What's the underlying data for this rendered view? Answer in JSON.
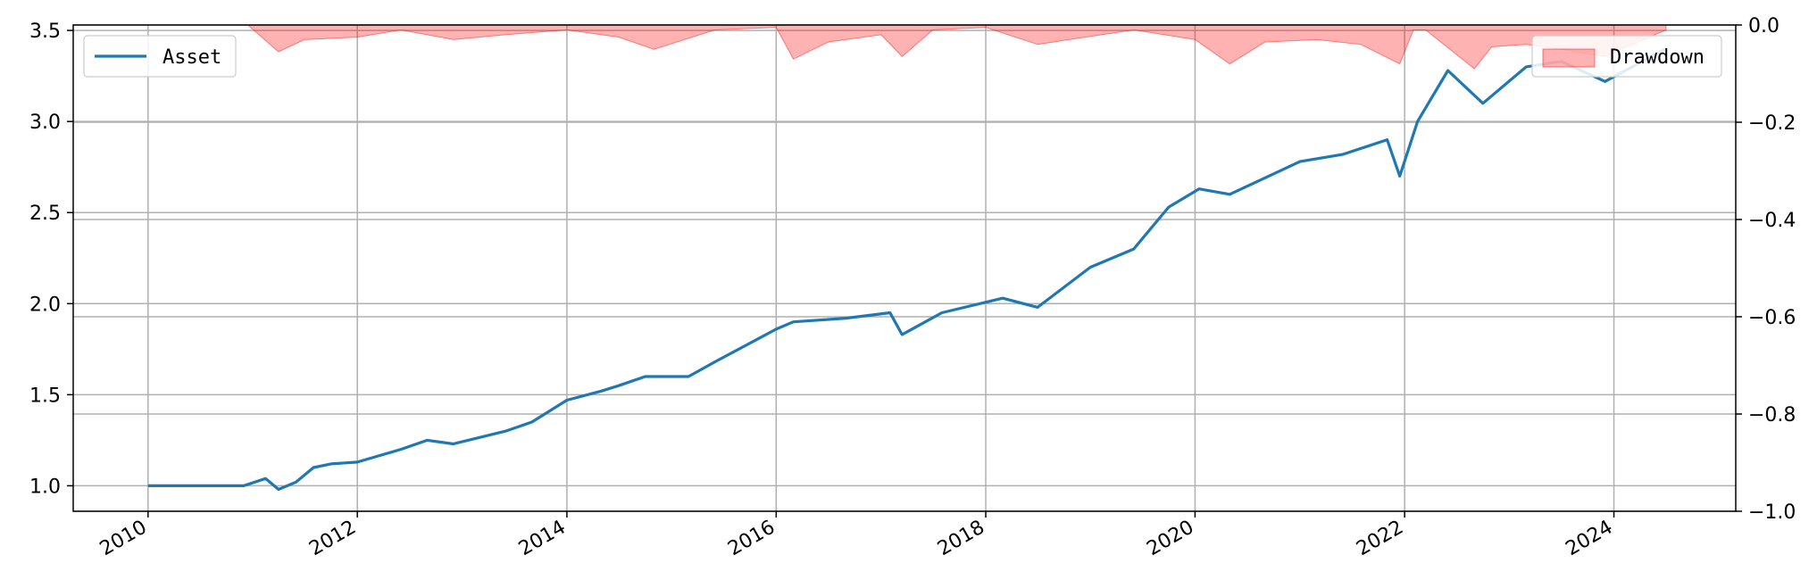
{
  "chart_data": {
    "type": "line",
    "x_type": "date",
    "xlim": [
      "2009-04-15",
      "2025-03-01"
    ],
    "x_ticks": [
      "2010",
      "2012",
      "2014",
      "2016",
      "2018",
      "2020",
      "2022",
      "2024"
    ],
    "xlabel": "",
    "ylabel": "",
    "ylim": [
      0.86,
      3.53
    ],
    "y_ticks": [
      "1.0",
      "1.5",
      "2.0",
      "2.5",
      "3.0",
      "3.5"
    ],
    "y2lim": [
      -1.0,
      0.0
    ],
    "y2_ticks": [
      "0.0",
      "−0.2",
      "−0.4",
      "−0.6",
      "−0.8",
      "−1.0"
    ],
    "grid": true,
    "series": [
      {
        "name": "Asset",
        "axis": "left",
        "color": "#1f77b4",
        "legend_position": "upper left",
        "x": [
          "2010-01-01",
          "2010-07-01",
          "2010-12-01",
          "2011-02-15",
          "2011-04-01",
          "2011-06-01",
          "2011-08-01",
          "2011-10-01",
          "2012-01-01",
          "2012-06-01",
          "2012-09-01",
          "2012-12-01",
          "2013-06-01",
          "2013-09-01",
          "2014-01-01",
          "2014-05-01",
          "2014-07-01",
          "2014-10-01",
          "2015-03-01",
          "2015-06-01",
          "2016-01-01",
          "2016-03-01",
          "2016-09-01",
          "2017-02-01",
          "2017-03-15",
          "2017-08-01",
          "2018-03-01",
          "2018-07-01",
          "2019-01-01",
          "2019-06-01",
          "2019-10-01",
          "2020-01-15",
          "2020-05-01",
          "2021-01-01",
          "2021-06-01",
          "2021-11-01",
          "2021-12-15",
          "2022-02-15",
          "2022-06-01",
          "2022-10-01",
          "2023-03-01",
          "2023-07-01",
          "2023-12-01",
          "2024-07-01"
        ],
        "values": [
          1.0,
          1.0,
          1.0,
          1.04,
          0.98,
          1.02,
          1.1,
          1.12,
          1.13,
          1.2,
          1.25,
          1.23,
          1.3,
          1.35,
          1.47,
          1.52,
          1.55,
          1.6,
          1.6,
          1.68,
          1.86,
          1.9,
          1.92,
          1.95,
          1.83,
          1.95,
          2.03,
          1.98,
          2.2,
          2.3,
          2.53,
          2.63,
          2.6,
          2.78,
          2.82,
          2.9,
          2.7,
          3.0,
          3.28,
          3.1,
          3.3,
          3.33,
          3.22,
          3.4
        ]
      },
      {
        "name": "Drawdown",
        "axis": "right",
        "type": "area",
        "color": "#ff0000",
        "fill_opacity": 0.3,
        "legend_position": "upper right",
        "x": [
          "2010-01-01",
          "2010-12-15",
          "2011-04-01",
          "2011-07-01",
          "2012-01-01",
          "2012-06-01",
          "2012-12-01",
          "2013-06-01",
          "2014-01-01",
          "2014-07-01",
          "2014-11-01",
          "2015-06-01",
          "2016-01-01",
          "2016-03-01",
          "2016-07-01",
          "2017-01-01",
          "2017-03-15",
          "2017-07-01",
          "2018-01-01",
          "2018-07-01",
          "2019-06-01",
          "2020-01-01",
          "2020-05-01",
          "2020-09-01",
          "2021-03-01",
          "2021-08-01",
          "2021-12-15",
          "2022-02-01",
          "2022-03-15",
          "2022-09-01",
          "2022-11-01",
          "2023-03-01",
          "2023-07-01",
          "2023-12-01",
          "2024-07-01"
        ],
        "values": [
          0.0,
          0.0,
          -0.055,
          -0.03,
          -0.025,
          -0.01,
          -0.03,
          -0.02,
          -0.01,
          -0.025,
          -0.05,
          -0.01,
          -0.005,
          -0.07,
          -0.035,
          -0.02,
          -0.065,
          -0.01,
          -0.005,
          -0.04,
          -0.01,
          -0.03,
          -0.08,
          -0.035,
          -0.03,
          -0.04,
          -0.08,
          -0.01,
          -0.01,
          -0.09,
          -0.045,
          -0.04,
          -0.05,
          -0.065,
          -0.01
        ]
      }
    ]
  }
}
